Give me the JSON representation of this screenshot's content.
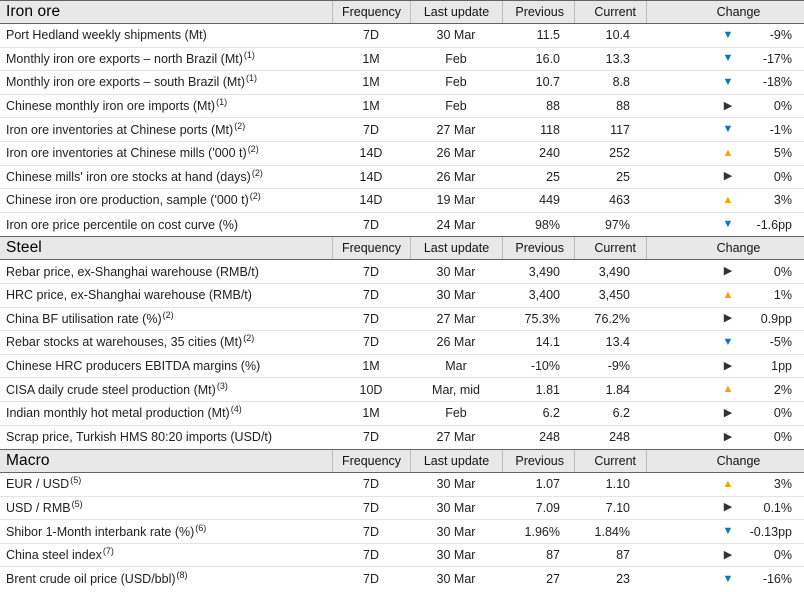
{
  "columns": {
    "frequency": "Frequency",
    "last_update": "Last update",
    "previous": "Previous",
    "current": "Current",
    "change": "Change"
  },
  "icons": {
    "up": "▲",
    "down": "▼",
    "flat": "▶"
  },
  "colors": {
    "up": "#F0A800",
    "down": "#1377BD",
    "flat": "#333333"
  },
  "sections": [
    {
      "title": "Iron ore",
      "rows": [
        {
          "label": "Port Hedland weekly shipments (Mt)",
          "footnote": "",
          "frequency": "7D",
          "last_update": "30 Mar",
          "previous": "11.5",
          "current": "10.4",
          "direction": "down",
          "change": "-9%"
        },
        {
          "label": "Monthly iron ore exports – north Brazil (Mt)",
          "footnote": "(1)",
          "frequency": "1M",
          "last_update": "Feb",
          "previous": "16.0",
          "current": "13.3",
          "direction": "down",
          "change": "-17%"
        },
        {
          "label": "Monthly iron ore exports – south Brazil (Mt)",
          "footnote": "(1)",
          "frequency": "1M",
          "last_update": "Feb",
          "previous": "10.7",
          "current": "8.8",
          "direction": "down",
          "change": "-18%"
        },
        {
          "label": "Chinese monthly iron ore imports (Mt)",
          "footnote": "(1)",
          "frequency": "1M",
          "last_update": "Feb",
          "previous": "88",
          "current": "88",
          "direction": "flat",
          "change": "0%"
        },
        {
          "label": "Iron ore inventories at Chinese ports (Mt)",
          "footnote": "(2)",
          "frequency": "7D",
          "last_update": "27 Mar",
          "previous": "118",
          "current": "117",
          "direction": "down",
          "change": "-1%"
        },
        {
          "label": "Iron ore inventories at Chinese mills ('000 t)",
          "footnote": "(2)",
          "frequency": "14D",
          "last_update": "26 Mar",
          "previous": "240",
          "current": "252",
          "direction": "up",
          "change": "5%"
        },
        {
          "label": "Chinese mills' iron ore stocks at hand (days)",
          "footnote": "(2)",
          "frequency": "14D",
          "last_update": "26 Mar",
          "previous": "25",
          "current": "25",
          "direction": "flat",
          "change": "0%"
        },
        {
          "label": "Chinese iron ore production, sample ('000 t)",
          "footnote": "(2)",
          "frequency": "14D",
          "last_update": "19 Mar",
          "previous": "449",
          "current": "463",
          "direction": "up",
          "change": "3%"
        },
        {
          "label": "Iron ore price percentile on cost curve (%)",
          "footnote": "",
          "frequency": "7D",
          "last_update": "24 Mar",
          "previous": "98%",
          "current": "97%",
          "direction": "down",
          "change": "-1.6pp"
        }
      ]
    },
    {
      "title": "Steel",
      "rows": [
        {
          "label": "Rebar price, ex-Shanghai warehouse (RMB/t)",
          "footnote": "",
          "frequency": "7D",
          "last_update": "30 Mar",
          "previous": "3,490",
          "current": "3,490",
          "direction": "flat",
          "change": "0%"
        },
        {
          "label": "HRC price, ex-Shanghai warehouse (RMB/t)",
          "footnote": "",
          "frequency": "7D",
          "last_update": "30 Mar",
          "previous": "3,400",
          "current": "3,450",
          "direction": "up",
          "change": "1%"
        },
        {
          "label": "China BF utilisation rate (%)",
          "footnote": "(2)",
          "frequency": "7D",
          "last_update": "27 Mar",
          "previous": "75.3%",
          "current": "76.2%",
          "direction": "flat",
          "change": "0.9pp"
        },
        {
          "label": "Rebar stocks at warehouses, 35 cities (Mt)",
          "footnote": "(2)",
          "frequency": "7D",
          "last_update": "26 Mar",
          "previous": "14.1",
          "current": "13.4",
          "direction": "down",
          "change": "-5%"
        },
        {
          "label": "Chinese HRC producers EBITDA margins (%)",
          "footnote": "",
          "frequency": "1M",
          "last_update": "Mar",
          "previous": "-10%",
          "current": "-9%",
          "direction": "flat",
          "change": "1pp"
        },
        {
          "label": "CISA daily crude steel production (Mt)",
          "footnote": "(3)",
          "frequency": "10D",
          "last_update": "Mar, mid",
          "previous": "1.81",
          "current": "1.84",
          "direction": "up",
          "change": "2%"
        },
        {
          "label": "Indian monthly hot metal production (Mt)",
          "footnote": "(4)",
          "frequency": "1M",
          "last_update": "Feb",
          "previous": "6.2",
          "current": "6.2",
          "direction": "flat",
          "change": "0%"
        },
        {
          "label": "Scrap price, Turkish HMS 80:20 imports (USD/t)",
          "footnote": "",
          "frequency": "7D",
          "last_update": "27 Mar",
          "previous": "248",
          "current": "248",
          "direction": "flat",
          "change": "0%"
        }
      ]
    },
    {
      "title": "Macro",
      "rows": [
        {
          "label": "EUR / USD",
          "footnote": "(5)",
          "frequency": "7D",
          "last_update": "30 Mar",
          "previous": "1.07",
          "current": "1.10",
          "direction": "up",
          "change": "3%"
        },
        {
          "label": "USD / RMB",
          "footnote": "(5)",
          "frequency": "7D",
          "last_update": "30 Mar",
          "previous": "7.09",
          "current": "7.10",
          "direction": "flat",
          "change": "0.1%"
        },
        {
          "label": "Shibor 1-Month interbank rate (%)",
          "footnote": "(6)",
          "frequency": "7D",
          "last_update": "30 Mar",
          "previous": "1.96%",
          "current": "1.84%",
          "direction": "down",
          "change": "-0.13pp"
        },
        {
          "label": "China steel index",
          "footnote": "(7)",
          "frequency": "7D",
          "last_update": "30 Mar",
          "previous": "87",
          "current": "87",
          "direction": "flat",
          "change": "0%"
        },
        {
          "label": "Brent crude oil price (USD/bbl)",
          "footnote": "(8)",
          "frequency": "7D",
          "last_update": "30 Mar",
          "previous": "27",
          "current": "23",
          "direction": "down",
          "change": "-16%"
        }
      ]
    }
  ]
}
